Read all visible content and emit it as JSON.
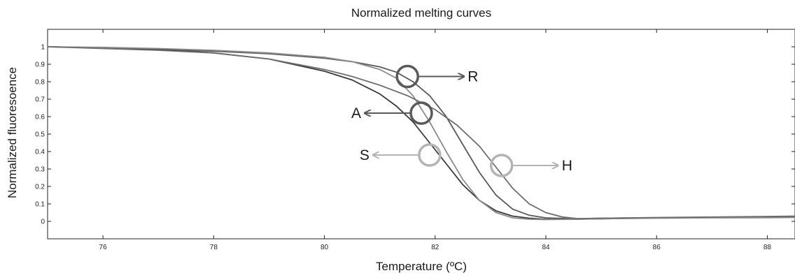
{
  "chart_data": {
    "type": "line",
    "title": "Normalized melting curves",
    "xlabel": "Temperature (ºC)",
    "ylabel": "Normalized fluoresoence",
    "xlim": [
      75,
      88.5
    ],
    "ylim": [
      -0.1,
      1.1
    ],
    "xticks": [
      76,
      78,
      80,
      82,
      84,
      86,
      88
    ],
    "yticks": [
      0,
      0.1,
      0.2,
      0.3,
      0.4,
      0.5,
      0.6,
      0.7,
      0.8,
      0.9,
      1
    ],
    "grid": false,
    "colors": {
      "R": "#5a5a5a",
      "A": "#3a3a3a",
      "S": "#8c8c8c",
      "H": "#6e6e6e",
      "H_marker": "#b4b4b4",
      "S_marker": "#b4b4b4"
    },
    "series": [
      {
        "name": "R",
        "x": [
          75,
          76,
          77,
          78,
          79,
          80,
          80.5,
          81,
          81.3,
          81.6,
          81.9,
          82.2,
          82.5,
          82.8,
          83.1,
          83.4,
          83.7,
          84,
          84.5,
          85,
          86,
          87,
          88,
          88.5
        ],
        "y": [
          1.0,
          0.995,
          0.985,
          0.975,
          0.96,
          0.935,
          0.915,
          0.885,
          0.855,
          0.8,
          0.72,
          0.6,
          0.44,
          0.28,
          0.15,
          0.07,
          0.035,
          0.02,
          0.015,
          0.018,
          0.02,
          0.022,
          0.023,
          0.024
        ]
      },
      {
        "name": "A",
        "x": [
          75,
          76,
          77,
          78,
          79,
          80,
          80.5,
          81,
          81.3,
          81.6,
          81.9,
          82.2,
          82.5,
          82.8,
          83.1,
          83.4,
          83.7,
          84,
          84.5,
          85,
          86,
          87,
          88,
          88.5
        ],
        "y": [
          1.0,
          0.995,
          0.985,
          0.965,
          0.93,
          0.86,
          0.81,
          0.73,
          0.66,
          0.57,
          0.45,
          0.33,
          0.21,
          0.12,
          0.06,
          0.03,
          0.018,
          0.012,
          0.012,
          0.015,
          0.02,
          0.023,
          0.025,
          0.026
        ]
      },
      {
        "name": "S",
        "x": [
          75,
          76,
          77,
          78,
          79,
          80,
          80.5,
          81,
          81.3,
          81.6,
          81.9,
          82.2,
          82.5,
          82.8,
          83.1,
          83.4,
          83.7,
          84,
          84.5,
          85,
          86,
          87,
          88,
          88.5
        ],
        "y": [
          1.0,
          0.997,
          0.99,
          0.98,
          0.965,
          0.94,
          0.915,
          0.87,
          0.82,
          0.72,
          0.57,
          0.4,
          0.24,
          0.12,
          0.05,
          0.02,
          0.012,
          0.01,
          0.012,
          0.015,
          0.018,
          0.02,
          0.021,
          0.022
        ]
      },
      {
        "name": "H",
        "x": [
          75,
          76,
          77,
          78,
          79,
          80,
          80.5,
          81,
          81.5,
          82,
          82.4,
          82.8,
          83.1,
          83.4,
          83.7,
          84,
          84.3,
          84.6,
          85,
          86,
          87,
          88,
          88.5
        ],
        "y": [
          1.0,
          0.99,
          0.98,
          0.965,
          0.93,
          0.87,
          0.83,
          0.78,
          0.72,
          0.64,
          0.55,
          0.43,
          0.31,
          0.19,
          0.1,
          0.05,
          0.025,
          0.015,
          0.018,
          0.022,
          0.025,
          0.028,
          0.03
        ]
      }
    ],
    "annotations": [
      {
        "label": "R",
        "x": 81.5,
        "y": 0.83,
        "direction": "right",
        "color": "#5a5a5a"
      },
      {
        "label": "A",
        "x": 81.75,
        "y": 0.62,
        "direction": "left",
        "color": "#5a5a5a"
      },
      {
        "label": "S",
        "x": 81.9,
        "y": 0.38,
        "direction": "left",
        "color": "#b4b4b4"
      },
      {
        "label": "H",
        "x": 83.2,
        "y": 0.32,
        "direction": "right",
        "color": "#b4b4b4"
      }
    ]
  }
}
